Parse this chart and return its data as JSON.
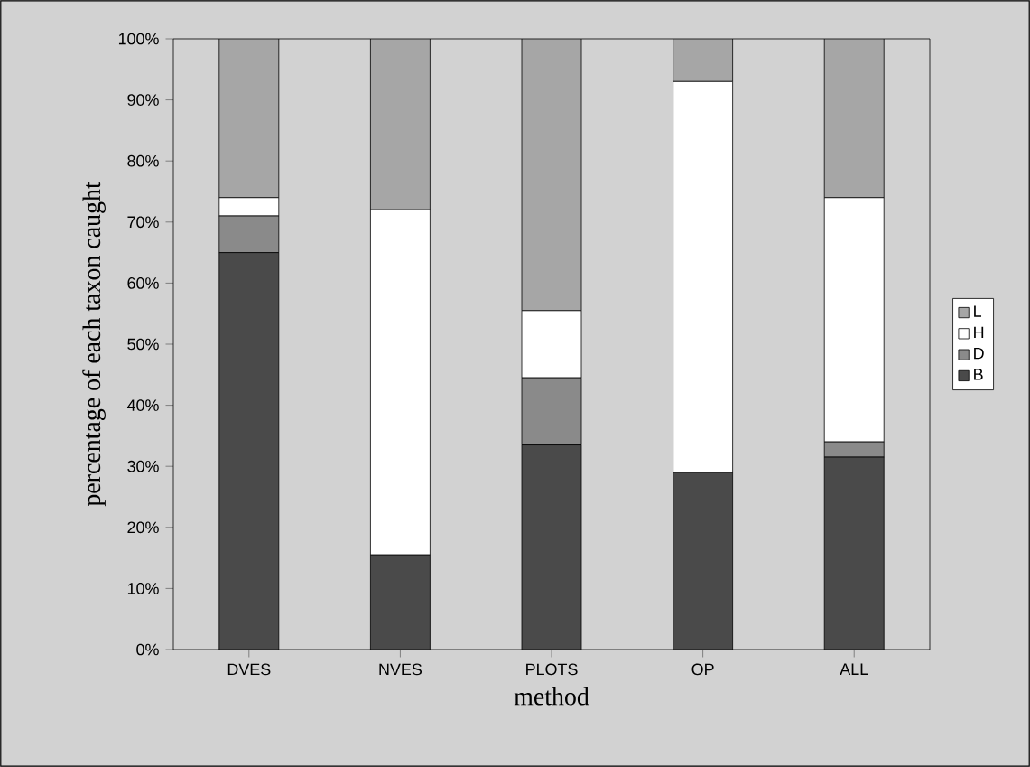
{
  "chart_data": {
    "type": "bar",
    "stacked": true,
    "xlabel": "method",
    "ylabel": "percentage of each taxon caught",
    "categories": [
      "DVES",
      "NVES",
      "PLOTS",
      "OP",
      "ALL"
    ],
    "series": [
      {
        "name": "B",
        "color": "#4a4a4a",
        "values": [
          65,
          15.5,
          33.5,
          29,
          31.5
        ]
      },
      {
        "name": "D",
        "color": "#8a8a8a",
        "values": [
          6,
          0,
          11,
          0,
          2.5
        ]
      },
      {
        "name": "H",
        "color": "#ffffff",
        "values": [
          3,
          56.5,
          11,
          64,
          40
        ]
      },
      {
        "name": "L",
        "color": "#a6a6a6",
        "values": [
          26,
          28,
          44.5,
          7,
          26
        ]
      }
    ],
    "ylim": [
      0,
      100
    ],
    "yticks": [
      {
        "value": 0,
        "label": "0%"
      },
      {
        "value": 10,
        "label": "10%"
      },
      {
        "value": 20,
        "label": "20%"
      },
      {
        "value": 30,
        "label": "30%"
      },
      {
        "value": 40,
        "label": "40%"
      },
      {
        "value": 50,
        "label": "50%"
      },
      {
        "value": 60,
        "label": "60%"
      },
      {
        "value": 70,
        "label": "70%"
      },
      {
        "value": 80,
        "label": "80%"
      },
      {
        "value": 90,
        "label": "90%"
      },
      {
        "value": 100,
        "label": "100%"
      }
    ],
    "grid": false,
    "legend": "right"
  }
}
